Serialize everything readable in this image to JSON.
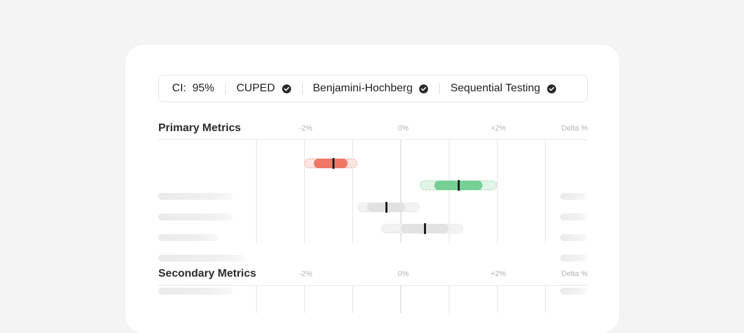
{
  "settings_bar": {
    "ci_label": "CI:",
    "ci_value": "95%",
    "options": [
      "CUPED",
      "Benjamini-Hochberg",
      "Sequential Testing"
    ]
  },
  "sections": [
    {
      "title": "Primary Metrics",
      "axis_labels": [
        "-2%",
        "0%",
        "+2%"
      ],
      "delta_label": "Delta %",
      "rows": [
        {
          "status": "negative",
          "estimate": -1.4,
          "ci95": [
            -2.0,
            -0.9
          ],
          "core": [
            -1.8,
            -1.1
          ]
        },
        {
          "status": "positive",
          "estimate": 1.2,
          "ci95": [
            0.4,
            2.0
          ],
          "core": [
            0.7,
            1.7
          ]
        },
        {
          "status": "neutral",
          "estimate": -0.3,
          "ci95": [
            -0.9,
            0.4
          ],
          "core": [
            -0.7,
            0.1
          ]
        },
        {
          "status": "neutral",
          "estimate": 0.5,
          "ci95": [
            -0.4,
            1.3
          ],
          "core": [
            0.0,
            1.0
          ]
        }
      ]
    },
    {
      "title": "Secondary Metrics",
      "axis_labels": [
        "-2%",
        "0%",
        "+2%"
      ],
      "delta_label": "Delta %",
      "rows": []
    }
  ],
  "colors": {
    "negative": "#ee7766",
    "negative_bg": "#fde5e1",
    "negative_border": "#f2a79d",
    "positive": "#77cf96",
    "positive_bg": "#e2f5e8",
    "positive_border": "#9fdcb3",
    "neutral": "#e2e2e2",
    "neutral_bg": "#f2f2f2",
    "neutral_border": "#e7e7e7"
  }
}
